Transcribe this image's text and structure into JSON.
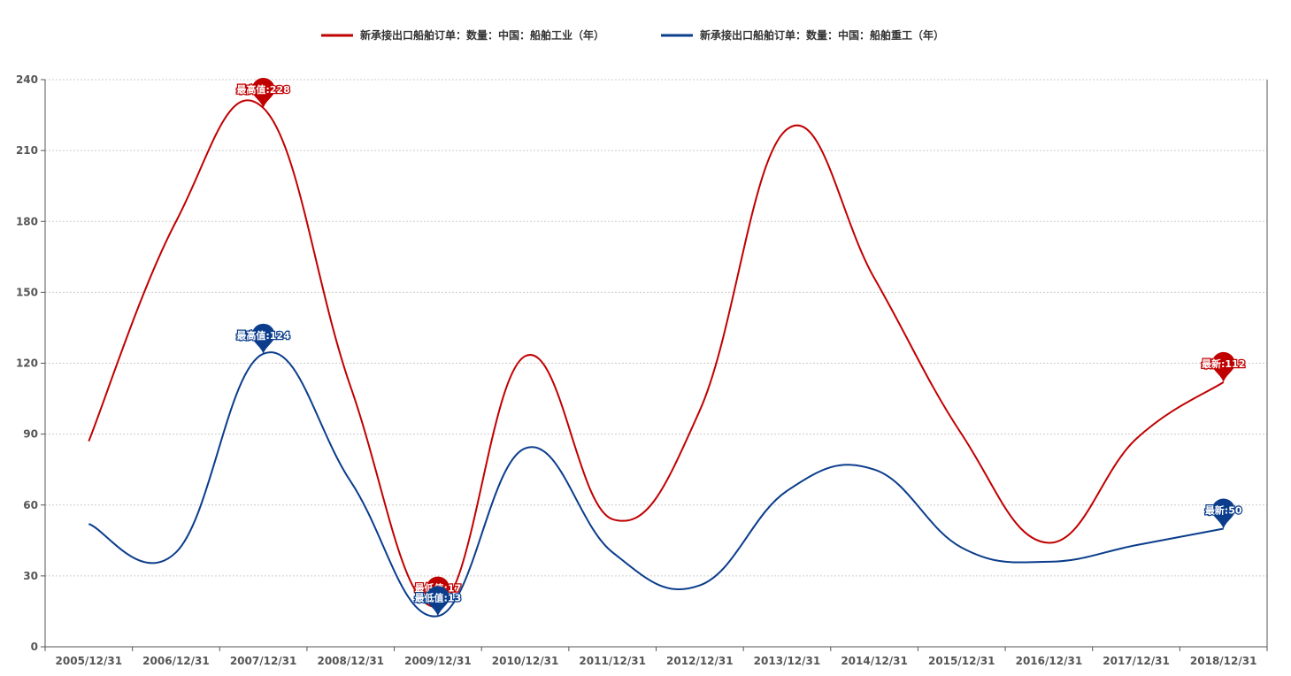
{
  "chart_data": {
    "type": "line",
    "categories": [
      "2005/12/31",
      "2006/12/31",
      "2007/12/31",
      "2008/12/31",
      "2009/12/31",
      "2010/12/31",
      "2011/12/31",
      "2012/12/31",
      "2013/12/31",
      "2014/12/31",
      "2015/12/31",
      "2016/12/31",
      "2017/12/31",
      "2018/12/31"
    ],
    "yticks": [
      0,
      30,
      60,
      90,
      120,
      150,
      180,
      210,
      240
    ],
    "ylim": [
      0,
      240
    ],
    "grid": true,
    "legend_position": "top-center",
    "series": [
      {
        "name": "新承接出口船舶订单：数量：中国：船舶工业（年）",
        "color": "#c00000",
        "values": [
          87,
          180,
          228,
          110,
          17,
          123,
          54,
          100,
          219,
          156,
          90,
          44,
          88,
          112
        ],
        "markers": [
          {
            "type": "max",
            "label": "最高值:228",
            "index": 2,
            "value": 228
          },
          {
            "type": "min",
            "label": "最低值:17",
            "index": 4,
            "value": 17
          },
          {
            "type": "latest",
            "label": "最新:112",
            "index": 13,
            "value": 112
          }
        ]
      },
      {
        "name": "新承接出口船舶订单：数量：中国：船舶重工（年）",
        "color": "#0b3d8c",
        "values": [
          52,
          40,
          124,
          70,
          13,
          84,
          40,
          26,
          66,
          75,
          42,
          36,
          43,
          50
        ],
        "markers": [
          {
            "type": "max",
            "label": "最高值:124",
            "index": 2,
            "value": 124
          },
          {
            "type": "min",
            "label": "最低值:13",
            "index": 4,
            "value": 13
          },
          {
            "type": "latest",
            "label": "最新:50",
            "index": 13,
            "value": 50
          }
        ]
      }
    ]
  }
}
